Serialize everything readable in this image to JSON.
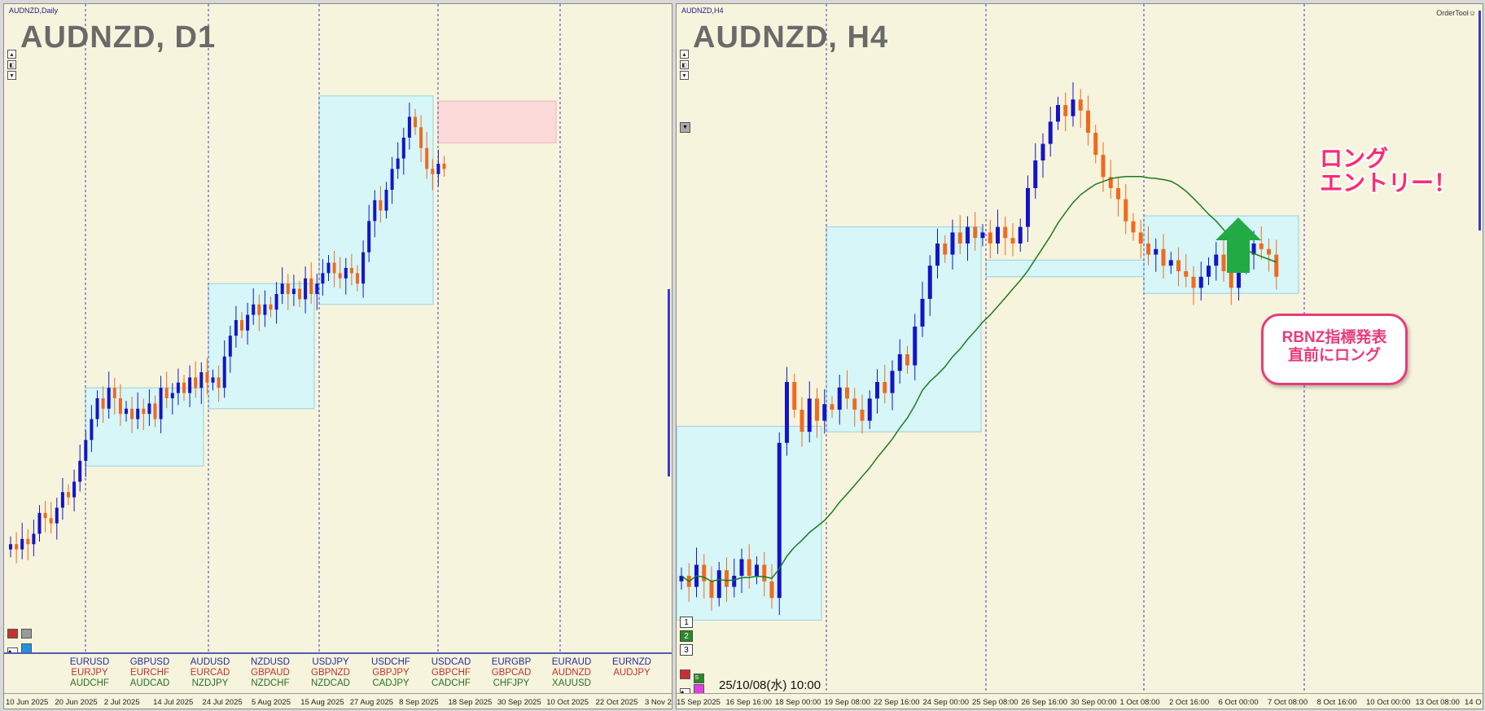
{
  "left": {
    "tag": "AUDNZD,Daily",
    "title": "AUDNZD, D1",
    "x_ticks": [
      "10 Jun 2025",
      "20 Jun 2025",
      "2 Jul 2025",
      "14 Jul 2025",
      "24 Jul 2025",
      "5 Aug 2025",
      "15 Aug 2025",
      "27 Aug 2025",
      "8 Sep 2025",
      "18 Sep 2025",
      "30 Sep 2025",
      "10 Oct 2025",
      "22 Oct 2025",
      "3 Nov 2"
    ],
    "pairs": [
      [
        "EURUSD",
        "EURJPY",
        "AUDCHF"
      ],
      [
        "GBPUSD",
        "EURCHF",
        "AUDCAD"
      ],
      [
        "AUDUSD",
        "EURCAD",
        "NZDJPY"
      ],
      [
        "NZDUSD",
        "GBPAUD",
        "NZDCHF"
      ],
      [
        "USDJPY",
        "GBPNZD",
        "NZDCAD"
      ],
      [
        "USDCHF",
        "GBPJPY",
        "CADJPY"
      ],
      [
        "USDCAD",
        "GBPCHF",
        "CADCHF"
      ],
      [
        "EURGBP",
        "GBPCAD",
        "CHFJPY"
      ],
      [
        "EURAUD",
        "AUDNZD",
        "XAUUSD"
      ],
      [
        "EURNZD",
        "AUDJPY",
        ""
      ]
    ],
    "pair_colors": [
      "#2a2a9a",
      "#c03030",
      "#287028"
    ]
  },
  "right": {
    "tag": "AUDNZD,H4",
    "title": "AUDNZD, H4",
    "ordertool": "OrderTool☺",
    "x_ticks": [
      "15 Sep 2025",
      "16 Sep 16:00",
      "18 Sep 00:00",
      "19 Sep 08:00",
      "22 Sep 16:00",
      "24 Sep 00:00",
      "25 Sep 08:00",
      "26 Sep 16:00",
      "30 Sep 00:00",
      "1 Oct 08:00",
      "2 Oct 16:00",
      "6 Oct 00:00",
      "7 Oct 08:00",
      "8 Oct 16:00",
      "10 Oct 00:00",
      "13 Oct 08:00",
      "14 O"
    ],
    "num_buttons": [
      "1",
      "2",
      "3"
    ],
    "datetime": "25/10/08(水) 10:00",
    "annotation": [
      "ロング",
      "エントリー！"
    ],
    "callout": [
      "RBNZ指標発表",
      "直前にロング"
    ]
  },
  "colors": {
    "bg": "#f6f4dc",
    "bull": "#1414c8",
    "bear": "#f06a1e",
    "zone": "#d6f6f8",
    "zone_border": "#9ad0e0",
    "supply_zone": "#fbdada",
    "ma": "#1e7a1e",
    "arrow": "#22aa44",
    "highlight": "#ff2a70"
  },
  "chart_data": [
    {
      "type": "candlestick",
      "symbol": "AUDNZD",
      "timeframe": "D1",
      "title": "AUDNZD, D1",
      "x_ticks": [
        "10 Jun 2025",
        "20 Jun 2025",
        "2 Jul 2025",
        "14 Jul 2025",
        "24 Jul 2025",
        "5 Aug 2025",
        "15 Aug 2025",
        "27 Aug 2025",
        "8 Sep 2025",
        "18 Sep 2025",
        "30 Sep 2025",
        "10 Oct 2025",
        "22 Oct 2025",
        "3 Nov 2"
      ],
      "close_path": [
        0.12,
        0.11,
        0.13,
        0.12,
        0.14,
        0.18,
        0.17,
        0.16,
        0.19,
        0.22,
        0.21,
        0.24,
        0.28,
        0.32,
        0.36,
        0.4,
        0.38,
        0.42,
        0.4,
        0.37,
        0.38,
        0.36,
        0.38,
        0.37,
        0.39,
        0.36,
        0.42,
        0.4,
        0.41,
        0.43,
        0.41,
        0.44,
        0.42,
        0.45,
        0.43,
        0.44,
        0.42,
        0.48,
        0.52,
        0.55,
        0.53,
        0.56,
        0.58,
        0.56,
        0.58,
        0.57,
        0.6,
        0.62,
        0.6,
        0.61,
        0.59,
        0.63,
        0.6,
        0.62,
        0.64,
        0.66,
        0.64,
        0.63,
        0.65,
        0.64,
        0.62,
        0.68,
        0.74,
        0.78,
        0.76,
        0.8,
        0.84,
        0.86,
        0.9,
        0.94,
        0.92,
        0.88,
        0.84,
        0.83,
        0.85,
        0.84
      ],
      "zones": [
        {
          "kind": "demand",
          "from_bar": 22,
          "to_bar": 57
        },
        {
          "kind": "supply",
          "from_bar": 70,
          "to_bar": 94
        }
      ]
    },
    {
      "type": "candlestick",
      "symbol": "AUDNZD",
      "timeframe": "H4",
      "title": "AUDNZD, H4",
      "x_ticks": [
        "15 Sep 2025",
        "16 Sep 16:00",
        "18 Sep 00:00",
        "19 Sep 08:00",
        "22 Sep 16:00",
        "24 Sep 00:00",
        "25 Sep 08:00",
        "26 Sep 16:00",
        "30 Sep 00:00",
        "1 Oct 08:00",
        "2 Oct 16:00",
        "6 Oct 00:00",
        "7 Oct 08:00",
        "8 Oct 16:00",
        "10 Oct 00:00",
        "13 Oct 08:00",
        "14 O"
      ],
      "close_path": [
        0.1,
        0.08,
        0.12,
        0.09,
        0.06,
        0.11,
        0.08,
        0.1,
        0.13,
        0.1,
        0.12,
        0.09,
        0.06,
        0.34,
        0.45,
        0.4,
        0.36,
        0.42,
        0.38,
        0.41,
        0.4,
        0.44,
        0.42,
        0.4,
        0.38,
        0.42,
        0.45,
        0.43,
        0.47,
        0.5,
        0.48,
        0.55,
        0.6,
        0.66,
        0.7,
        0.68,
        0.72,
        0.7,
        0.73,
        0.71,
        0.72,
        0.7,
        0.73,
        0.71,
        0.7,
        0.73,
        0.8,
        0.85,
        0.88,
        0.92,
        0.95,
        0.93,
        0.96,
        0.94,
        0.9,
        0.86,
        0.82,
        0.8,
        0.78,
        0.74,
        0.72,
        0.7,
        0.68,
        0.69,
        0.66,
        0.67,
        0.65,
        0.64,
        0.62,
        0.64,
        0.66,
        0.68,
        0.65,
        0.62,
        0.66,
        0.68,
        0.7,
        0.69,
        0.68,
        0.64
      ],
      "ma_label": "",
      "zones": [
        {
          "kind": "demand",
          "from_bar": 0,
          "to_bar": 22
        },
        {
          "kind": "demand",
          "from_bar": 22,
          "to_bar": 46
        },
        {
          "kind": "demand",
          "from_bar": 46,
          "to_bar": 70
        },
        {
          "kind": "demand",
          "from_bar": 70,
          "to_bar": 96
        }
      ]
    }
  ]
}
